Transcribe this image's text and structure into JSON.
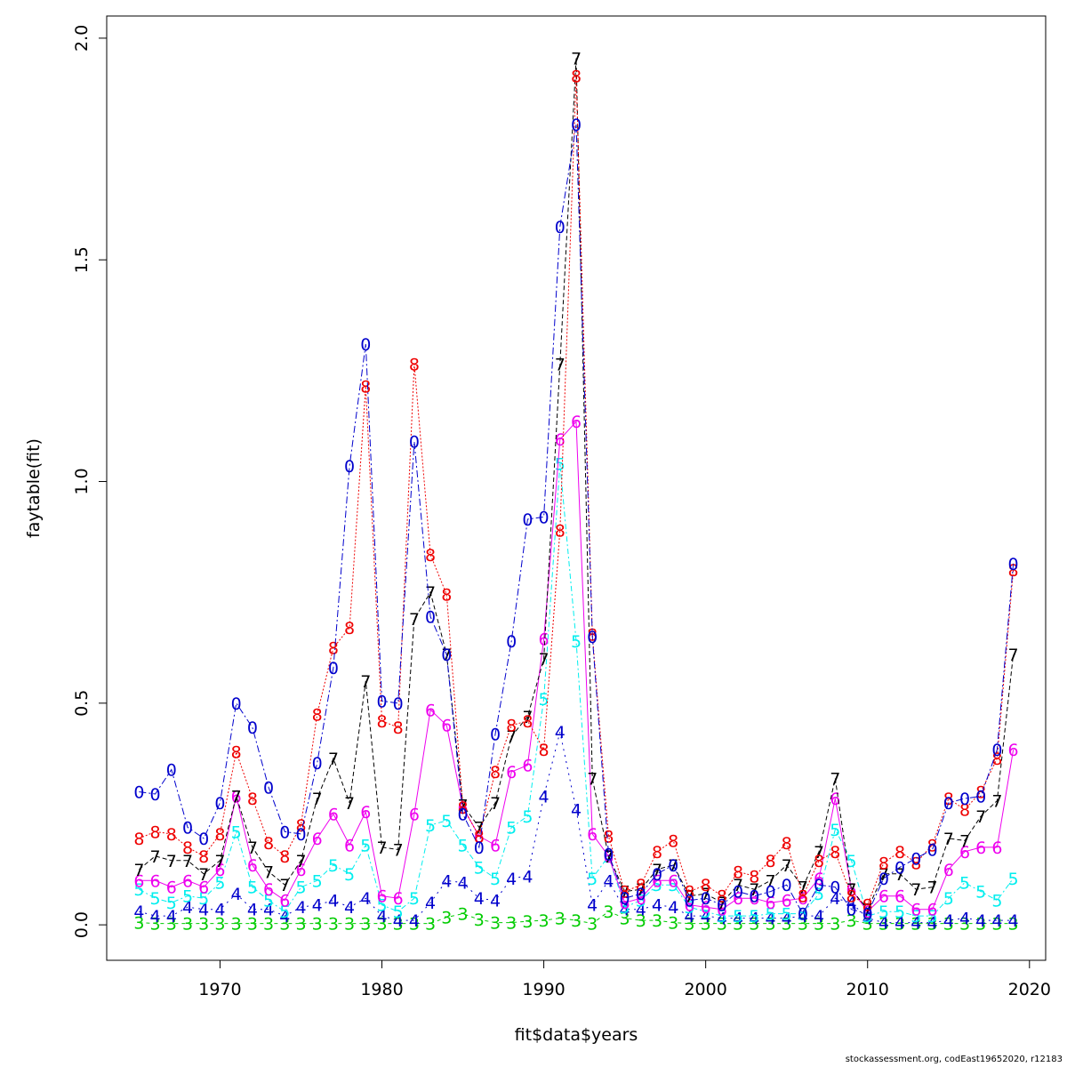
{
  "chart_data": {
    "type": "line",
    "xlabel": "fit$data$years",
    "ylabel": "faytable(fit)",
    "xlim": [
      1963,
      2021
    ],
    "ylim": [
      -0.08,
      2.05
    ],
    "x_ticks": [
      1970,
      1980,
      1990,
      2000,
      2010,
      2020
    ],
    "y_ticks": [
      0.0,
      0.5,
      1.0,
      1.5,
      2.0
    ],
    "y_tick_labels": [
      "0.0",
      "0.5",
      "1.0",
      "1.5",
      "2.0"
    ],
    "grid": false,
    "credit": "stockassessment.org, codEast19652020, r12183",
    "x": [
      1965,
      1966,
      1967,
      1968,
      1969,
      1970,
      1971,
      1972,
      1973,
      1974,
      1975,
      1976,
      1977,
      1978,
      1979,
      1980,
      1981,
      1982,
      1983,
      1984,
      1985,
      1986,
      1987,
      1988,
      1989,
      1990,
      1991,
      1992,
      1993,
      1994,
      1995,
      1996,
      1997,
      1998,
      1999,
      2000,
      2001,
      2002,
      2003,
      2004,
      2005,
      2006,
      2007,
      2008,
      2009,
      2010,
      2011,
      2012,
      2013,
      2014,
      2015,
      2016,
      2017,
      2018,
      2019
    ],
    "series": [
      {
        "label": "3",
        "color": "#00cc00",
        "dash": "4,4",
        "values": [
          0.005,
          0.003,
          0.003,
          0.003,
          0.003,
          0.003,
          0.003,
          0.003,
          0.003,
          0.003,
          0.003,
          0.003,
          0.003,
          0.003,
          0.003,
          0.003,
          0.003,
          0.003,
          0.003,
          0.017,
          0.025,
          0.012,
          0.005,
          0.005,
          0.008,
          0.01,
          0.015,
          0.01,
          0.003,
          0.03,
          0.015,
          0.01,
          0.01,
          0.005,
          0.003,
          0.003,
          0.003,
          0.003,
          0.003,
          0.003,
          0.003,
          0.003,
          0.003,
          0.003,
          0.01,
          0.003,
          0.003,
          0.003,
          0.003,
          0.003,
          0.003,
          0.003,
          0.003,
          0.003,
          0.003
        ]
      },
      {
        "label": "4",
        "color": "#0000cc",
        "dash": "2,5",
        "values": [
          0.03,
          0.02,
          0.02,
          0.04,
          0.035,
          0.035,
          0.07,
          0.035,
          0.035,
          0.02,
          0.04,
          0.045,
          0.055,
          0.04,
          0.06,
          0.02,
          0.01,
          0.01,
          0.05,
          0.1,
          0.095,
          0.06,
          0.055,
          0.105,
          0.11,
          0.29,
          0.435,
          0.26,
          0.045,
          0.1,
          0.035,
          0.035,
          0.045,
          0.04,
          0.02,
          0.02,
          0.015,
          0.015,
          0.015,
          0.015,
          0.015,
          0.02,
          0.02,
          0.06,
          0.05,
          0.015,
          0.005,
          0.005,
          0.005,
          0.005,
          0.01,
          0.015,
          0.01,
          0.01,
          0.01
        ]
      },
      {
        "label": "5",
        "color": "#00eeee",
        "dash": "6,3,2,3",
        "values": [
          0.08,
          0.06,
          0.05,
          0.065,
          0.06,
          0.095,
          0.21,
          0.085,
          0.055,
          0.03,
          0.085,
          0.1,
          0.135,
          0.115,
          0.18,
          0.045,
          0.03,
          0.06,
          0.225,
          0.235,
          0.18,
          0.13,
          0.105,
          0.22,
          0.245,
          0.51,
          1.04,
          0.64,
          0.105,
          0.155,
          0.04,
          0.055,
          0.09,
          0.09,
          0.04,
          0.03,
          0.02,
          0.02,
          0.02,
          0.025,
          0.025,
          0.025,
          0.07,
          0.215,
          0.145,
          0.02,
          0.03,
          0.03,
          0.02,
          0.02,
          0.06,
          0.095,
          0.075,
          0.055,
          0.105
        ]
      },
      {
        "label": "6",
        "color": "#ee00ee",
        "dash": "",
        "values": [
          0.1,
          0.1,
          0.085,
          0.1,
          0.085,
          0.125,
          0.29,
          0.135,
          0.08,
          0.055,
          0.125,
          0.195,
          0.25,
          0.18,
          0.255,
          0.065,
          0.06,
          0.25,
          0.485,
          0.45,
          0.265,
          0.2,
          0.18,
          0.345,
          0.36,
          0.645,
          1.095,
          1.135,
          0.205,
          0.155,
          0.05,
          0.06,
          0.1,
          0.1,
          0.045,
          0.04,
          0.035,
          0.06,
          0.06,
          0.05,
          0.055,
          0.06,
          0.105,
          0.285,
          0.08,
          0.03,
          0.065,
          0.065,
          0.035,
          0.035,
          0.125,
          0.165,
          0.175,
          0.175,
          0.395
        ]
      },
      {
        "label": "7",
        "color": "#000000",
        "dash": "5,3",
        "values": [
          0.125,
          0.155,
          0.145,
          0.145,
          0.115,
          0.145,
          0.29,
          0.175,
          0.12,
          0.09,
          0.145,
          0.285,
          0.375,
          0.275,
          0.55,
          0.175,
          0.17,
          0.69,
          0.75,
          0.61,
          0.27,
          0.22,
          0.275,
          0.425,
          0.47,
          0.6,
          1.265,
          1.955,
          0.33,
          0.155,
          0.075,
          0.08,
          0.125,
          0.135,
          0.065,
          0.07,
          0.05,
          0.09,
          0.08,
          0.1,
          0.135,
          0.085,
          0.165,
          0.33,
          0.08,
          0.035,
          0.115,
          0.115,
          0.08,
          0.085,
          0.195,
          0.19,
          0.245,
          0.28,
          0.61
        ]
      },
      {
        "label": "8",
        "color": "#ee0000",
        "dash": "2,2",
        "values": [
          0.195,
          0.21,
          0.205,
          0.175,
          0.155,
          0.205,
          0.39,
          0.285,
          0.185,
          0.155,
          0.225,
          0.475,
          0.625,
          0.67,
          1.215,
          0.46,
          0.445,
          1.265,
          0.835,
          0.745,
          0.265,
          0.2,
          0.345,
          0.45,
          0.46,
          0.395,
          0.89,
          1.915,
          0.655,
          0.2,
          0.075,
          0.09,
          0.165,
          0.19,
          0.075,
          0.09,
          0.065,
          0.12,
          0.11,
          0.145,
          0.185,
          0.065,
          0.145,
          0.165,
          0.065,
          0.045,
          0.14,
          0.165,
          0.14,
          0.18,
          0.285,
          0.26,
          0.3,
          0.375,
          0.8
        ]
      },
      {
        "label": "0",
        "color": "#0000cc",
        "dash": "8,3,2,3",
        "values": [
          0.3,
          0.295,
          0.35,
          0.22,
          0.195,
          0.275,
          0.5,
          0.445,
          0.31,
          0.21,
          0.205,
          0.365,
          0.58,
          1.035,
          1.31,
          0.505,
          0.5,
          1.09,
          0.695,
          0.61,
          0.25,
          0.175,
          0.43,
          0.64,
          0.915,
          0.92,
          1.575,
          1.805,
          0.65,
          0.16,
          0.06,
          0.07,
          0.115,
          0.135,
          0.055,
          0.06,
          0.045,
          0.075,
          0.065,
          0.075,
          0.09,
          0.025,
          0.09,
          0.085,
          0.035,
          0.025,
          0.105,
          0.13,
          0.15,
          0.17,
          0.275,
          0.285,
          0.29,
          0.395,
          0.815
        ]
      }
    ]
  }
}
